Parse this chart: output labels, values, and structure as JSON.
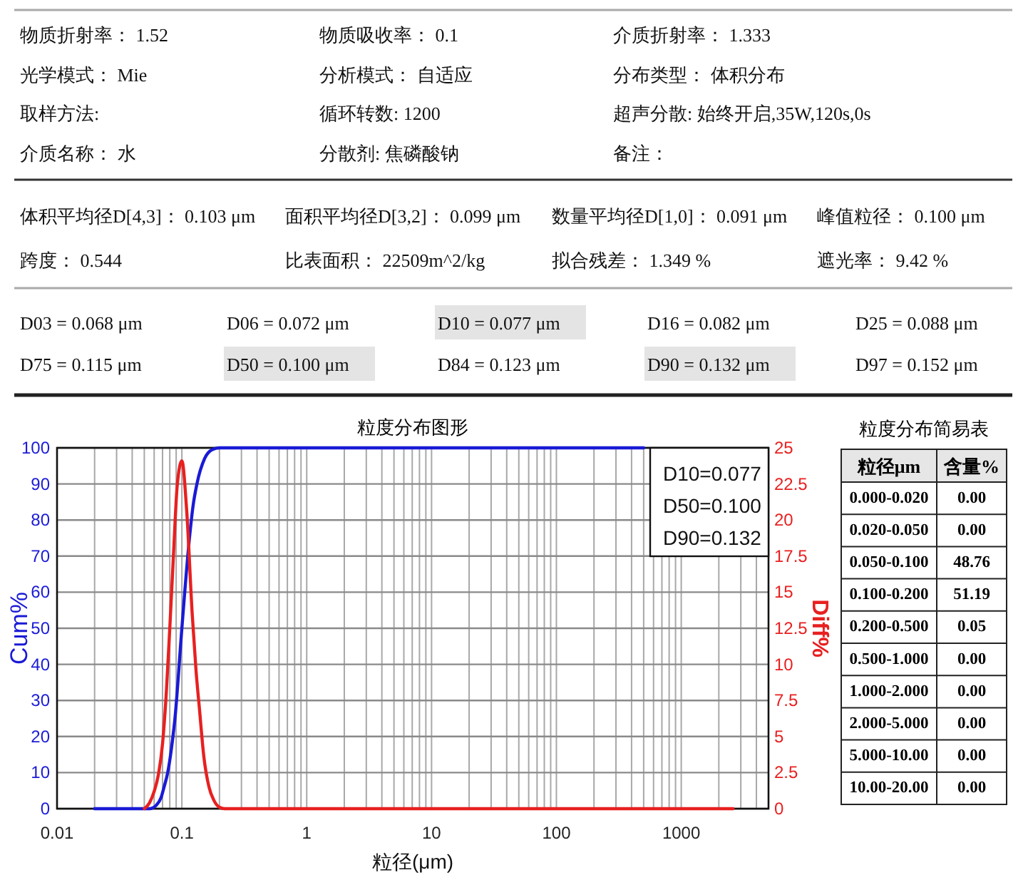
{
  "chart_data": [
    {
      "type": "other",
      "annotations": [
        "物质折射率： 1.52",
        "物质吸收率： 0.1",
        "介质折射率： 1.333",
        "光学模式： Mie",
        "分析模式： 自适应",
        "分布类型： 体积分布",
        "取样方法:",
        "循环转数: 1200",
        "超声分散: 始终开启,35W,120s,0s",
        "介质名称： 水",
        "分散剂: 焦磷酸钠",
        "备注："
      ]
    },
    {
      "type": "other",
      "annotations": [
        "体积平均径D[4,3]： 0.103 μm",
        "面积平均径D[3,2]： 0.099 μm",
        "数量平均径D[1,0]： 0.091 μm",
        "峰值粒径： 0.100 μm",
        "跨度： 0.544",
        "比表面积： 22509m^2/kg",
        "拟合残差： 1.349 %",
        "遮光率： 9.42 %"
      ]
    },
    {
      "type": "other",
      "annotations": [
        "D03 = 0.068 μm",
        "D06 = 0.072 μm",
        "D10 = 0.077 μm",
        "D16 = 0.082 μm",
        "D25 = 0.088 μm",
        "D75 = 0.115 μm",
        "D50 = 0.100 μm",
        "D84 = 0.123 μm",
        "D90 = 0.132 μm",
        "D97 = 0.152 μm"
      ]
    },
    {
      "type": "line",
      "title": "粒度分布图形",
      "xlabel": "粒径(μm)",
      "ylabel": "Cum%",
      "y2label": "Diff%",
      "log": "x",
      "grid": true,
      "xlim": [
        0.01,
        5000
      ],
      "xticks": [
        0.01,
        {
          "value": 0.02,
          "label": null
        },
        {
          "value": 0.03,
          "label": null
        },
        {
          "value": 0.04,
          "label": null
        },
        {
          "value": 0.05,
          "label": null
        },
        {
          "value": 0.06,
          "label": null
        },
        {
          "value": 0.07,
          "label": null
        },
        {
          "value": 0.08,
          "label": null
        },
        {
          "value": 0.09,
          "label": null
        },
        0.1,
        {
          "value": 0.2,
          "label": null
        },
        {
          "value": 0.3,
          "label": null
        },
        {
          "value": 0.4,
          "label": null
        },
        {
          "value": 0.5,
          "label": null
        },
        {
          "value": 0.6,
          "label": null
        },
        {
          "value": 0.7,
          "label": null
        },
        {
          "value": 0.8,
          "label": null
        },
        {
          "value": 0.9,
          "label": null
        },
        1,
        {
          "value": 2,
          "label": null
        },
        {
          "value": 3,
          "label": null
        },
        {
          "value": 4,
          "label": null
        },
        {
          "value": 5,
          "label": null
        },
        {
          "value": 6,
          "label": null
        },
        {
          "value": 7,
          "label": null
        },
        {
          "value": 8,
          "label": null
        },
        {
          "value": 9,
          "label": null
        },
        10,
        {
          "value": 20,
          "label": null
        },
        {
          "value": 30,
          "label": null
        },
        {
          "value": 40,
          "label": null
        },
        {
          "value": 50,
          "label": null
        },
        {
          "value": 60,
          "label": null
        },
        {
          "value": 70,
          "label": null
        },
        {
          "value": 80,
          "label": null
        },
        {
          "value": 90,
          "label": null
        },
        100,
        {
          "value": 200,
          "label": null
        },
        {
          "value": 300,
          "label": null
        },
        {
          "value": 400,
          "label": null
        },
        {
          "value": 500,
          "label": null
        },
        {
          "value": 600,
          "label": null
        },
        {
          "value": 700,
          "label": null
        },
        {
          "value": 800,
          "label": null
        },
        {
          "value": 900,
          "label": null
        },
        1000,
        {
          "value": 2000,
          "label": null
        },
        {
          "value": 3000,
          "label": null
        },
        {
          "value": 4000,
          "label": null
        }
      ],
      "ylim": [
        0,
        100
      ],
      "yticks": [
        0,
        10,
        20,
        30,
        40,
        50,
        60,
        70,
        80,
        90,
        100
      ],
      "y2lim": [
        0,
        25
      ],
      "y2ticks": [
        0,
        2.5,
        5,
        7.5,
        10,
        12.5,
        15,
        17.5,
        20,
        22.5,
        25
      ],
      "annotations": [
        "D10=0.077",
        "D50=0.100",
        "D90=0.132"
      ],
      "series": [
        {
          "color": "#1a1ad6",
          "x": [
            0.02,
            0.055,
            0.0625,
            0.068,
            0.072,
            0.077,
            0.082,
            0.088,
            0.1,
            0.115,
            0.123,
            0.132,
            0.152,
            0.175,
            0.2,
            500
          ],
          "values": [
            0,
            0,
            1,
            3,
            6,
            10,
            16,
            25,
            50,
            75,
            84,
            90,
            97,
            99.5,
            100,
            100
          ]
        },
        {
          "color": "#e82020",
          "axis": "y2",
          "x": [
            0.05,
            0.055,
            0.06,
            0.065,
            0.07,
            0.075,
            0.08,
            0.085,
            0.092,
            0.1,
            0.109,
            0.121,
            0.13,
            0.138,
            0.15,
            0.165,
            0.18,
            0.2,
            0.22,
            2600
          ],
          "values": [
            0,
            0.4,
            1.2,
            2.4,
            4.5,
            8,
            12.5,
            17,
            22.5,
            24.1,
            20.8,
            13.5,
            9.5,
            7,
            3.6,
            1.5,
            0.6,
            0.1,
            0,
            0
          ]
        }
      ]
    },
    {
      "type": "other",
      "title": "粒度分布简易表",
      "xlabel": "粒径μm",
      "ylabel": "含量%",
      "categories": [
        "0.000-0.020",
        "0.020-0.050",
        "0.050-0.100",
        "0.100-0.200",
        "0.200-0.500",
        "0.500-1.000",
        "1.000-2.000",
        "2.000-5.000",
        "5.000-10.00",
        "10.00-20.00"
      ],
      "value_labels": [
        "0.00",
        "0.00",
        "48.76",
        "51.19",
        "0.05",
        "0.00",
        "0.00",
        "0.00",
        "0.00",
        "0.00"
      ]
    }
  ]
}
